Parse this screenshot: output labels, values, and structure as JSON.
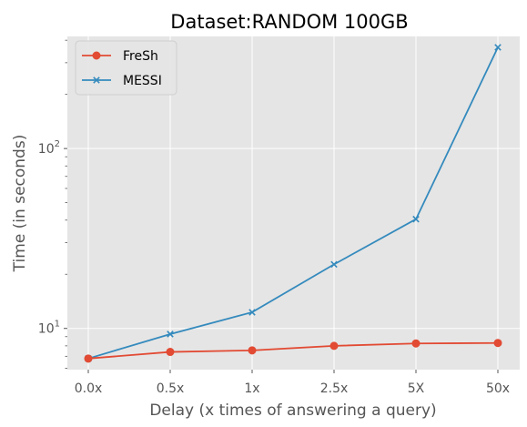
{
  "chart_data": {
    "type": "line",
    "title": "Dataset:RANDOM 100GB",
    "xlabel": "Delay (x times of answering a query)",
    "ylabel": "Time (in seconds)",
    "categories": [
      "0.0x",
      "0.5x",
      "1x",
      "2.5x",
      "5X",
      "50x"
    ],
    "y_scale": "log",
    "ylim": [
      5.9,
      420
    ],
    "y_major_ticks": [
      {
        "value": 10,
        "label": "10",
        "sup": "1"
      },
      {
        "value": 100,
        "label": "10",
        "sup": "2"
      }
    ],
    "grid": true,
    "legend_position": "top-left",
    "series": [
      {
        "name": "FreSh",
        "color": "#E24A33",
        "marker": "circle",
        "values": [
          6.8,
          7.4,
          7.55,
          8.0,
          8.25,
          8.3
        ]
      },
      {
        "name": "MESSI",
        "color": "#348ABD",
        "marker": "x",
        "values": [
          6.8,
          9.3,
          12.3,
          22.7,
          40.5,
          365
        ]
      }
    ]
  }
}
